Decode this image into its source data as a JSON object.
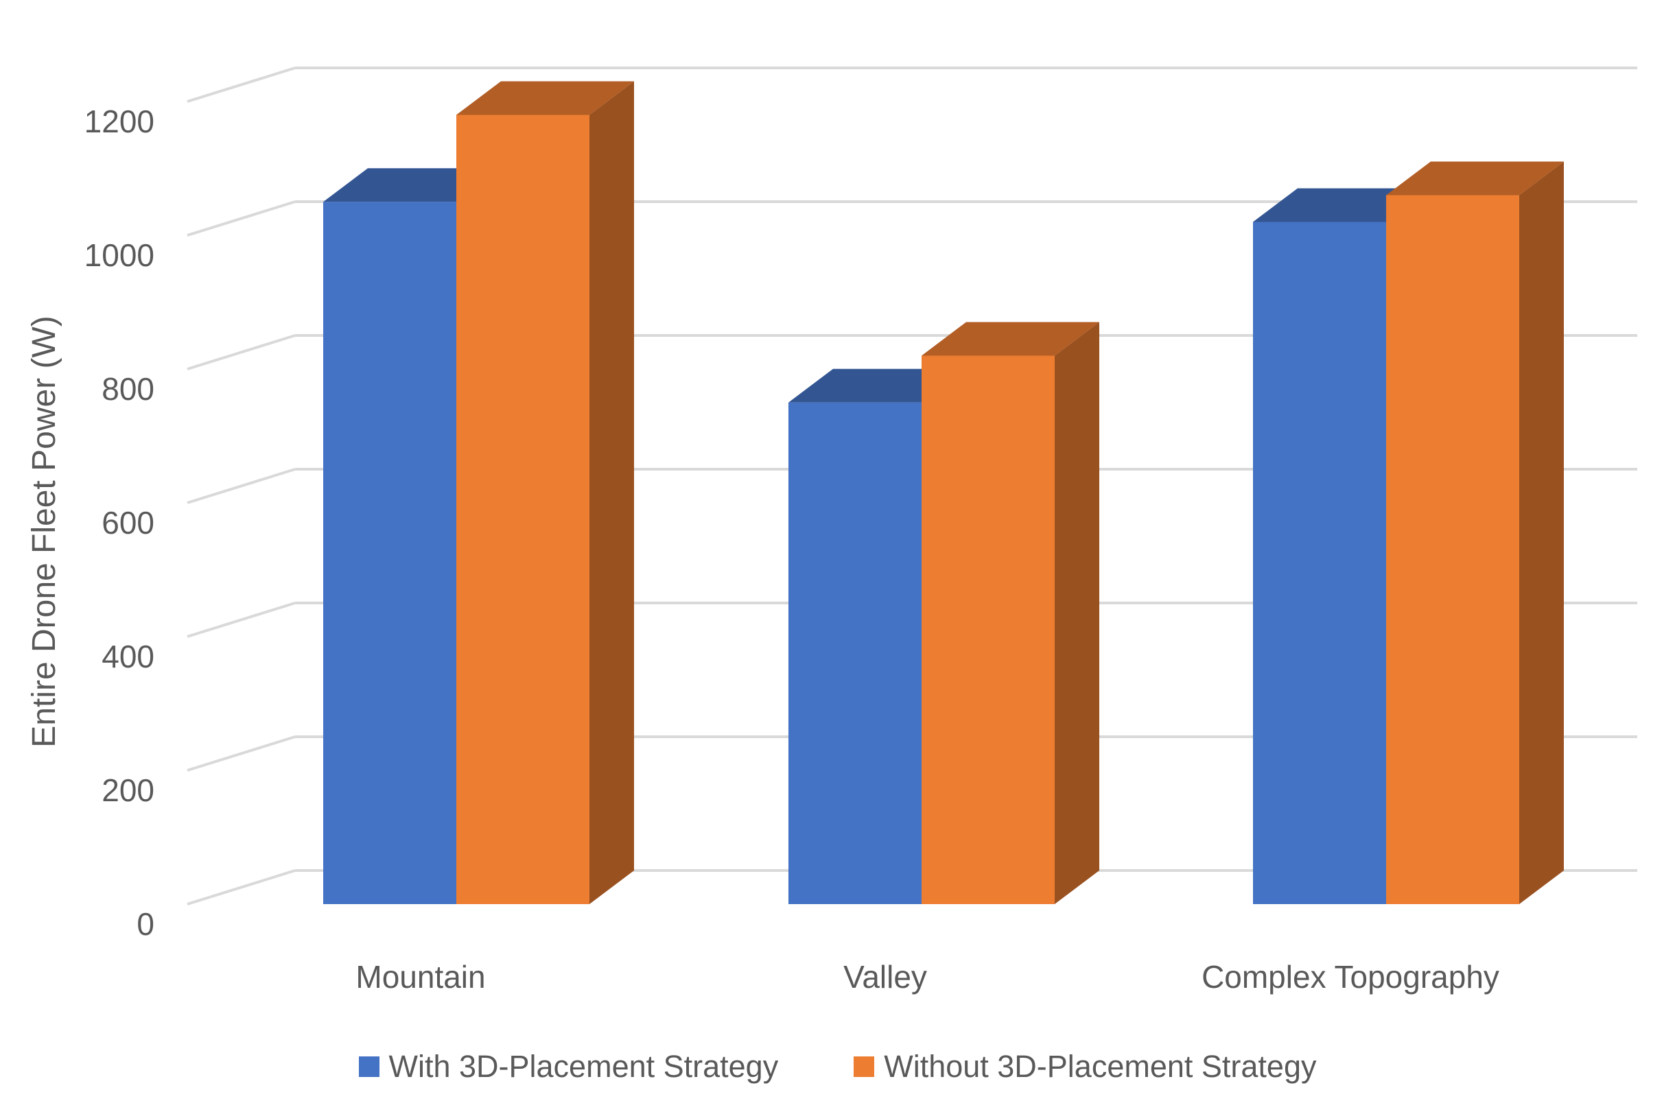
{
  "chart_data": {
    "type": "bar",
    "title": "",
    "xlabel": "",
    "ylabel": "Entire Drone Fleet Power (W)",
    "categories": [
      "Mountain",
      "Valley",
      "Complex Topography"
    ],
    "series": [
      {
        "name": "With 3D-Placement Strategy",
        "values": [
          1050,
          750,
          1020
        ],
        "color": "#4472C4"
      },
      {
        "name": "Without 3D-Placement Strategy",
        "values": [
          1180,
          820,
          1060
        ],
        "color": "#ED7D31"
      }
    ],
    "yticks": [
      "0",
      "200",
      "400",
      "600",
      "800",
      "1000",
      "1200"
    ],
    "ylim": [
      0,
      1200
    ],
    "grid": true,
    "legend": "bottom",
    "style": "3d-clustered-column"
  }
}
